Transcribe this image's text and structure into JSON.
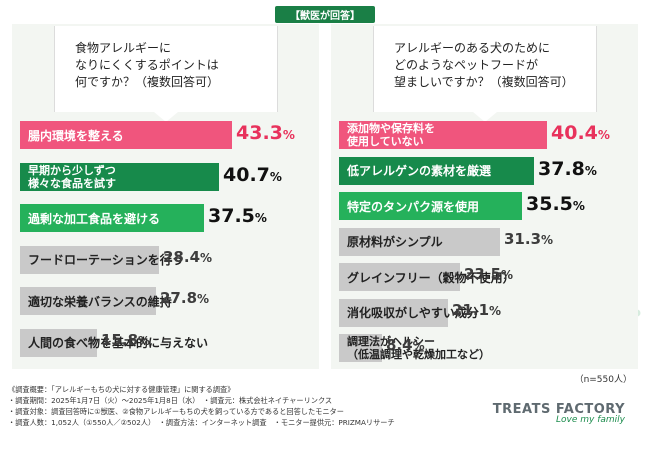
{
  "header": {
    "badge": "【獣医が回答】"
  },
  "colors": {
    "accent_pink": "#f0557d",
    "accent_green": "#178a4b",
    "accent_green_light": "#25b15b",
    "bar_gray": "#c9c9c9"
  },
  "chart_data": [
    {
      "type": "bar",
      "orientation": "horizontal",
      "question_lines": [
        "食物アレルギーに",
        "なりにくくするポイントは",
        "何ですか？（複数回答可）"
      ],
      "categories": [
        "腸内環境を整える",
        "早期から少しずつ様々な食品を試す",
        "過剰な加工食品を避ける",
        "フードローテーションを行う",
        "適切な栄養バランスの維持",
        "人間の食べ物を基本的に与えない"
      ],
      "category_lines": [
        [
          "腸内環境を整える"
        ],
        [
          "早期から少しずつ",
          "様々な食品を試す"
        ],
        [
          "過剰な加工食品を避ける"
        ],
        [
          "フードローテーションを行う"
        ],
        [
          "適切な栄養バランスの維持"
        ],
        [
          "人間の食べ物を基本的に与えない"
        ]
      ],
      "values": [
        43.3,
        40.7,
        37.5,
        28.4,
        27.8,
        15.8
      ],
      "value_labels": [
        {
          "num": "43.3",
          "unit": "%"
        },
        {
          "num": "40.7",
          "unit": "%"
        },
        {
          "num": "37.5",
          "unit": "%"
        },
        {
          "num": "28.4",
          "unit": "%"
        },
        {
          "num": "27.8",
          "unit": "%"
        },
        {
          "num": "15.8",
          "unit": "%"
        }
      ],
      "unit": "%"
    },
    {
      "type": "bar",
      "orientation": "horizontal",
      "question_lines": [
        "アレルギーのある犬のために",
        "どのようなペットフードが",
        "望ましいですか？（複数回答可）"
      ],
      "categories": [
        "添加物や保存料を使用していない",
        "低アレルゲンの素材を厳選",
        "特定のタンパク源を使用",
        "原材料がシンプル",
        "グレインフリー（穀物不使用）",
        "消化吸収がしやすい成分",
        "調理法がヘルシー（低温調理や乾燥加工など）"
      ],
      "category_lines": [
        [
          "添加物や保存料を",
          "使用していない"
        ],
        [
          "低アレルゲンの素材を厳選"
        ],
        [
          "特定のタンパク源を使用"
        ],
        [
          "原材料がシンプル"
        ],
        [
          "グレインフリー（穀物不使用）"
        ],
        [
          "消化吸収がしやすい成分"
        ],
        [
          "調理法がヘルシー",
          "（低温調理や乾燥加工など）"
        ]
      ],
      "values": [
        40.4,
        37.8,
        35.5,
        31.3,
        23.5,
        21.1,
        8.4
      ],
      "value_labels": [
        {
          "num": "40.4",
          "unit": "%"
        },
        {
          "num": "37.8",
          "unit": "%"
        },
        {
          "num": "35.5",
          "unit": "%"
        },
        {
          "num": "31.3",
          "unit": "%"
        },
        {
          "num": "23.5",
          "unit": "%"
        },
        {
          "num": "21.1",
          "unit": "%"
        },
        {
          "num": "8.4",
          "unit": "%"
        }
      ],
      "unit": "%",
      "sample_size": "（n=550人）"
    }
  ],
  "footer": {
    "lines": [
      "《調査概要：「アレルギーもちの犬に対する健康管理」に関する調査》",
      "・調査期間：2025年1月7日（火）～2025年1月8日（水）　・調査元：株式会社ネイチャーリンクス",
      "・調査対象：調査回答時に①獣医、②食物アレルギーもちの犬を飼っている方であると回答したモニター",
      "・調査人数：1,052人（①550人／②502人）　・調査方法：インターネット調査　・モニター提供元：PRIZMAリサーチ"
    ]
  },
  "brand": {
    "name": "TREATS FACTORY",
    "tagline": "Love my family"
  }
}
